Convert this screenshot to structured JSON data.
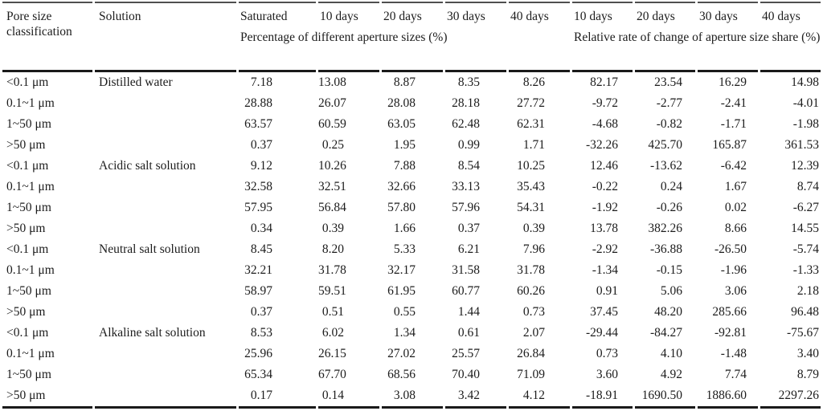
{
  "table": {
    "header": {
      "pore_size": "Pore size classification",
      "solution": "Solution",
      "saturated": "Saturated",
      "percent_days": [
        "10 days",
        "20 days",
        "30 days",
        "40 days"
      ],
      "rate_days": [
        "10 days",
        "20 days",
        "30 days",
        "40 days"
      ],
      "percent_group_label": "Percentage of different aperture sizes (%)",
      "rate_group_label": "Relative rate of change of aperture size share (%)"
    },
    "groups": [
      {
        "solution": "Distilled water",
        "rows": [
          {
            "pore": "<0.1 μm",
            "values": [
              "7.18",
              "13.08",
              "8.87",
              "8.35",
              "8.26",
              "82.17",
              "23.54",
              "16.29",
              "14.98"
            ]
          },
          {
            "pore": "0.1~1 μm",
            "values": [
              "28.88",
              "26.07",
              "28.08",
              "28.18",
              "27.72",
              "-9.72",
              "-2.77",
              "-2.41",
              "-4.01"
            ]
          },
          {
            "pore": "1~50 μm",
            "values": [
              "63.57",
              "60.59",
              "63.05",
              "62.48",
              "62.31",
              "-4.68",
              "-0.82",
              "-1.71",
              "-1.98"
            ]
          },
          {
            "pore": ">50 μm",
            "values": [
              "0.37",
              "0.25",
              "1.95",
              "0.99",
              "1.71",
              "-32.26",
              "425.70",
              "165.87",
              "361.53"
            ]
          }
        ]
      },
      {
        "solution": "Acidic salt solution",
        "rows": [
          {
            "pore": "<0.1 μm",
            "values": [
              "9.12",
              "10.26",
              "7.88",
              "8.54",
              "10.25",
              "12.46",
              "-13.62",
              "-6.42",
              "12.39"
            ]
          },
          {
            "pore": "0.1~1 μm",
            "values": [
              "32.58",
              "32.51",
              "32.66",
              "33.13",
              "35.43",
              "-0.22",
              "0.24",
              "1.67",
              "8.74"
            ]
          },
          {
            "pore": "1~50 μm",
            "values": [
              "57.95",
              "56.84",
              "57.80",
              "57.96",
              "54.31",
              "-1.92",
              "-0.26",
              "0.02",
              "-6.27"
            ]
          },
          {
            "pore": ">50 μm",
            "values": [
              "0.34",
              "0.39",
              "1.66",
              "0.37",
              "0.39",
              "13.78",
              "382.26",
              "8.66",
              "14.55"
            ]
          }
        ]
      },
      {
        "solution": "Neutral salt solution",
        "rows": [
          {
            "pore": "<0.1 μm",
            "values": [
              "8.45",
              "8.20",
              "5.33",
              "6.21",
              "7.96",
              "-2.92",
              "-36.88",
              "-26.50",
              "-5.74"
            ]
          },
          {
            "pore": "0.1~1 μm",
            "values": [
              "32.21",
              "31.78",
              "32.17",
              "31.58",
              "31.78",
              "-1.34",
              "-0.15",
              "-1.96",
              "-1.33"
            ]
          },
          {
            "pore": "1~50 μm",
            "values": [
              "58.97",
              "59.51",
              "61.95",
              "60.77",
              "60.26",
              "0.91",
              "5.06",
              "3.06",
              "2.18"
            ]
          },
          {
            "pore": ">50 μm",
            "values": [
              "0.37",
              "0.51",
              "0.55",
              "1.44",
              "0.73",
              "37.45",
              "48.20",
              "285.66",
              "96.48"
            ]
          }
        ]
      },
      {
        "solution": "Alkaline salt solution",
        "rows": [
          {
            "pore": "<0.1 μm",
            "values": [
              "8.53",
              "6.02",
              "1.34",
              "0.61",
              "2.07",
              "-29.44",
              "-84.27",
              "-92.81",
              "-75.67"
            ]
          },
          {
            "pore": "0.1~1 μm",
            "values": [
              "25.96",
              "26.15",
              "27.02",
              "25.57",
              "26.84",
              "0.73",
              "4.10",
              "-1.48",
              "3.40"
            ]
          },
          {
            "pore": "1~50 μm",
            "values": [
              "65.34",
              "67.70",
              "68.56",
              "70.40",
              "71.09",
              "3.60",
              "4.92",
              "7.74",
              "8.79"
            ]
          },
          {
            "pore": ">50 μm",
            "values": [
              "0.17",
              "0.14",
              "3.08",
              "3.42",
              "4.12",
              "-18.91",
              "1690.50",
              "1886.60",
              "2297.26"
            ]
          }
        ]
      }
    ]
  }
}
